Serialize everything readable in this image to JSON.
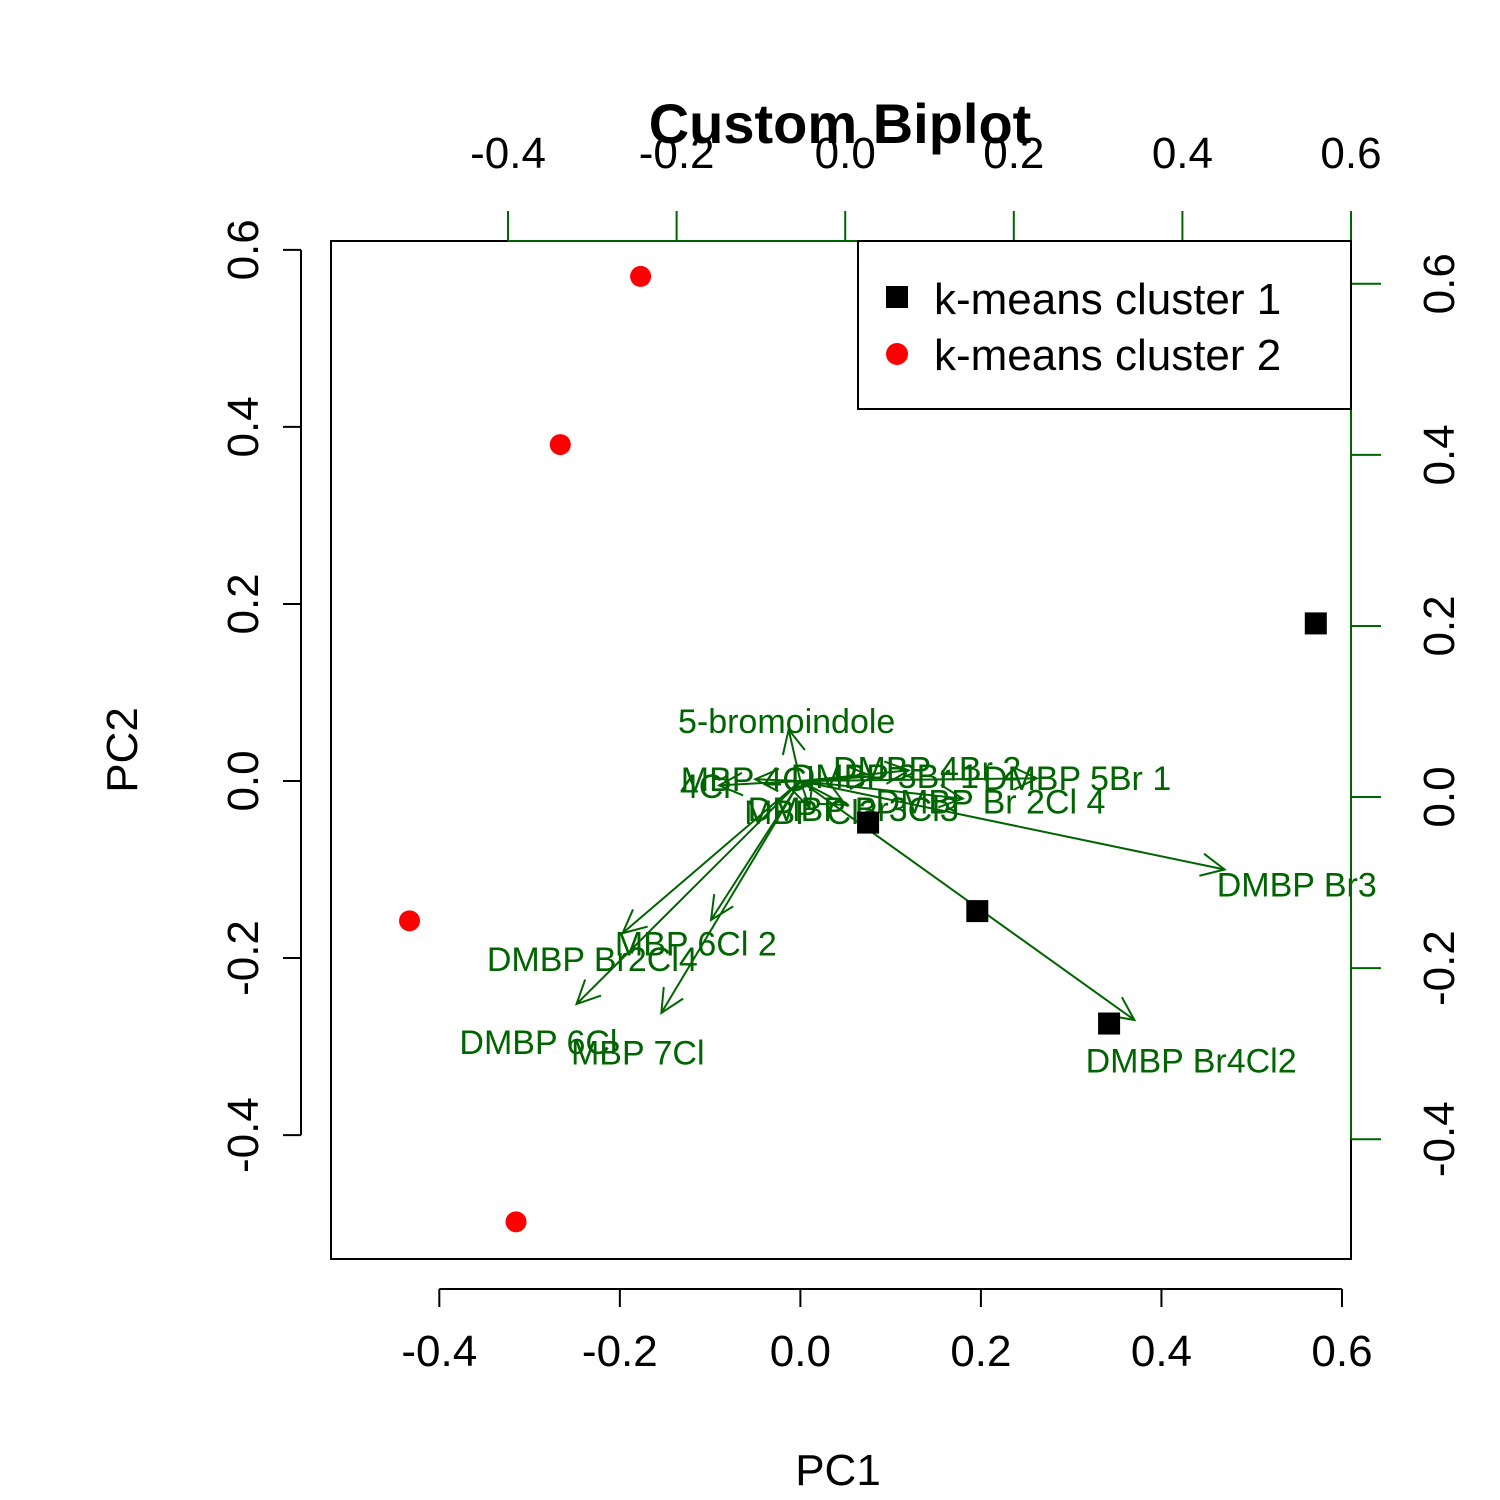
{
  "chart_data": {
    "type": "scatter",
    "title": "Custom Biplot",
    "xlabel": "PC1",
    "ylabel": "PC2",
    "xlim": [
      -0.52,
      0.61
    ],
    "ylim": [
      -0.54,
      0.61
    ],
    "x_ticks": [
      -0.4,
      -0.2,
      0.0,
      0.2,
      0.4,
      0.6
    ],
    "y_ticks": [
      -0.4,
      -0.2,
      0.0,
      0.2,
      0.4,
      0.6
    ],
    "x_tick_labels": [
      "-0.4",
      "-0.2",
      "0.0",
      "0.2",
      "0.4",
      "0.6"
    ],
    "y_tick_labels": [
      "-0.4",
      "-0.2",
      "0.0",
      "0.2",
      "0.4",
      "0.6"
    ],
    "top_axis": {
      "lim": [
        -0.61,
        0.6
      ],
      "ticks": [
        -0.4,
        -0.2,
        0.0,
        0.2,
        0.4,
        0.6
      ],
      "tick_labels": [
        "-0.4",
        "-0.2",
        "0.0",
        "0.2",
        "0.4",
        "0.6"
      ],
      "color": "#006400"
    },
    "right_axis": {
      "lim": [
        -0.54,
        0.65
      ],
      "ticks": [
        -0.4,
        -0.2,
        0.0,
        0.2,
        0.4,
        0.6
      ],
      "tick_labels": [
        "-0.4",
        "-0.2",
        "0.0",
        "0.2",
        "0.4",
        "0.6"
      ],
      "color": "#006400"
    },
    "series": [
      {
        "name": "k-means cluster 1",
        "color": "#000000",
        "marker": "square",
        "points": [
          {
            "x": 0.571,
            "y": 0.178
          },
          {
            "x": 0.196,
            "y": -0.147
          },
          {
            "x": 0.342,
            "y": -0.274
          },
          {
            "x": 0.075,
            "y": -0.047
          }
        ]
      },
      {
        "name": "k-means cluster 2",
        "color": "#ff0000",
        "marker": "circle",
        "points": [
          {
            "x": -0.177,
            "y": 0.57
          },
          {
            "x": -0.266,
            "y": 0.38
          },
          {
            "x": -0.433,
            "y": -0.158
          },
          {
            "x": -0.315,
            "y": -0.498
          }
        ]
      }
    ],
    "loadings": {
      "color": "#006400",
      "origin": [
        0.0,
        0.0
      ],
      "vectors": [
        {
          "label": "5-bromoindole",
          "x": -0.013,
          "y": 0.058
        },
        {
          "label": "DMBP 4Br 2",
          "x": 0.12,
          "y": 0.012
        },
        {
          "label": "DMBP 5Br 1",
          "x": 0.262,
          "y": 0.003
        },
        {
          "label": "DMBP Br3",
          "x": 0.47,
          "y": -0.1
        },
        {
          "label": "DMBP Br4Cl2",
          "x": 0.37,
          "y": -0.27
        },
        {
          "label": "DMBP Br2Cl4",
          "x": -0.197,
          "y": -0.172
        },
        {
          "label": "MBP 6Cl 2",
          "x": -0.099,
          "y": -0.157
        },
        {
          "label": "DMBP 6Cl",
          "x": -0.248,
          "y": -0.252
        },
        {
          "label": "MBP 7Cl",
          "x": -0.154,
          "y": -0.262
        },
        {
          "label": "MBP Cl3",
          "x": 0.01,
          "y": -0.03
        },
        {
          "label": "DMBP Br3Cl3",
          "x": 0.05,
          "y": -0.027
        },
        {
          "label": "DMBP Br 2Cl 4",
          "x": 0.18,
          "y": -0.02
        },
        {
          "label": "4Cl",
          "x": -0.09,
          "y": -0.005
        },
        {
          "label": "MBP 4Cl",
          "x": -0.05,
          "y": 0.002
        },
        {
          "label": "DMBP 3Br 1",
          "x": 0.08,
          "y": 0.005
        }
      ]
    },
    "legend": {
      "placement": "top-right",
      "entries": [
        "k-means cluster 1",
        "k-means cluster 2"
      ]
    },
    "grid": false
  }
}
